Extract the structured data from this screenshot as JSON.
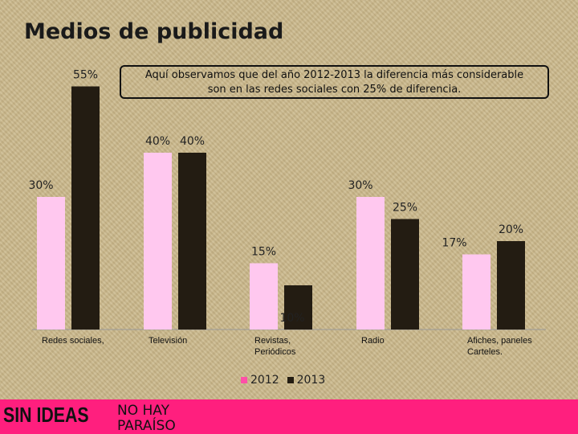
{
  "slide": {
    "title": "Medios de publicidad",
    "note_line1": "Aquí observamos que del año 2012-2013 la diferencia más considerable",
    "note_line2": "son en las redes sociales con 25% de diferencia."
  },
  "chart_data": {
    "type": "bar",
    "title": "",
    "xlabel": "",
    "ylabel": "",
    "ylim": [
      0,
      60
    ],
    "categories": [
      "Redes sociales,",
      "Televisión",
      "Revistas, Periódicos",
      "Radio",
      "Afiches, paneles Carteles."
    ],
    "series": [
      {
        "name": "2012",
        "color": "#ffc8ef",
        "values": [
          30,
          40,
          15,
          30,
          17
        ]
      },
      {
        "name": "2013",
        "color": "#231c12",
        "values": [
          55,
          40,
          10,
          25,
          20
        ]
      }
    ],
    "data_labels": [
      [
        "30%",
        "40%",
        "15%",
        "30%",
        "17%"
      ],
      [
        "55%",
        "40%",
        "10%",
        "25%",
        "20%"
      ]
    ],
    "legend": "bottom",
    "grid": false
  },
  "legend": {
    "item_2012": "2012",
    "item_2013": "2013"
  },
  "footer": {
    "logo_text": "SIN IDEAS",
    "tagline": "NO HAY PARAÍSO",
    "background_color": "#ff1f7e"
  }
}
